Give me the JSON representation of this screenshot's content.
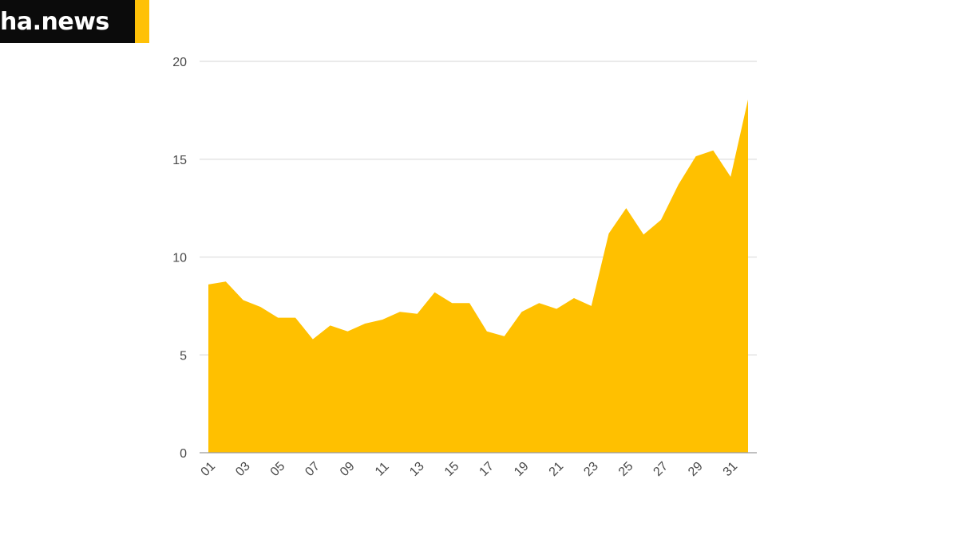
{
  "brand": {
    "logo_text": "ha.news",
    "accent_color": "#ffc107",
    "block_color": "#0b0b0b"
  },
  "chart_data": {
    "type": "area",
    "color": "#ffc000",
    "grid": true,
    "ylim": [
      0,
      20
    ],
    "y_ticks": [
      "0",
      "5",
      "10",
      "15",
      "20"
    ],
    "x_tick_labels": [
      "01",
      "03",
      "05",
      "07",
      "09",
      "11",
      "13",
      "15",
      "17",
      "19",
      "21",
      "23",
      "25",
      "27",
      "29",
      "31"
    ],
    "x": [
      "01",
      "02",
      "03",
      "04",
      "05",
      "06",
      "07",
      "08",
      "09",
      "10",
      "11",
      "12",
      "13",
      "14",
      "15",
      "16",
      "17",
      "18",
      "19",
      "20",
      "21",
      "22",
      "23",
      "24",
      "25",
      "26",
      "27",
      "28",
      "29",
      "30",
      "31",
      "32"
    ],
    "values": [
      8.6,
      8.75,
      7.8,
      7.45,
      6.9,
      6.9,
      5.8,
      6.5,
      6.2,
      6.6,
      6.8,
      7.2,
      7.1,
      8.2,
      7.65,
      7.65,
      6.2,
      5.95,
      7.2,
      7.65,
      7.35,
      7.9,
      7.5,
      11.2,
      12.5,
      11.15,
      11.9,
      13.7,
      15.15,
      15.45,
      14.1,
      18.05
    ]
  }
}
